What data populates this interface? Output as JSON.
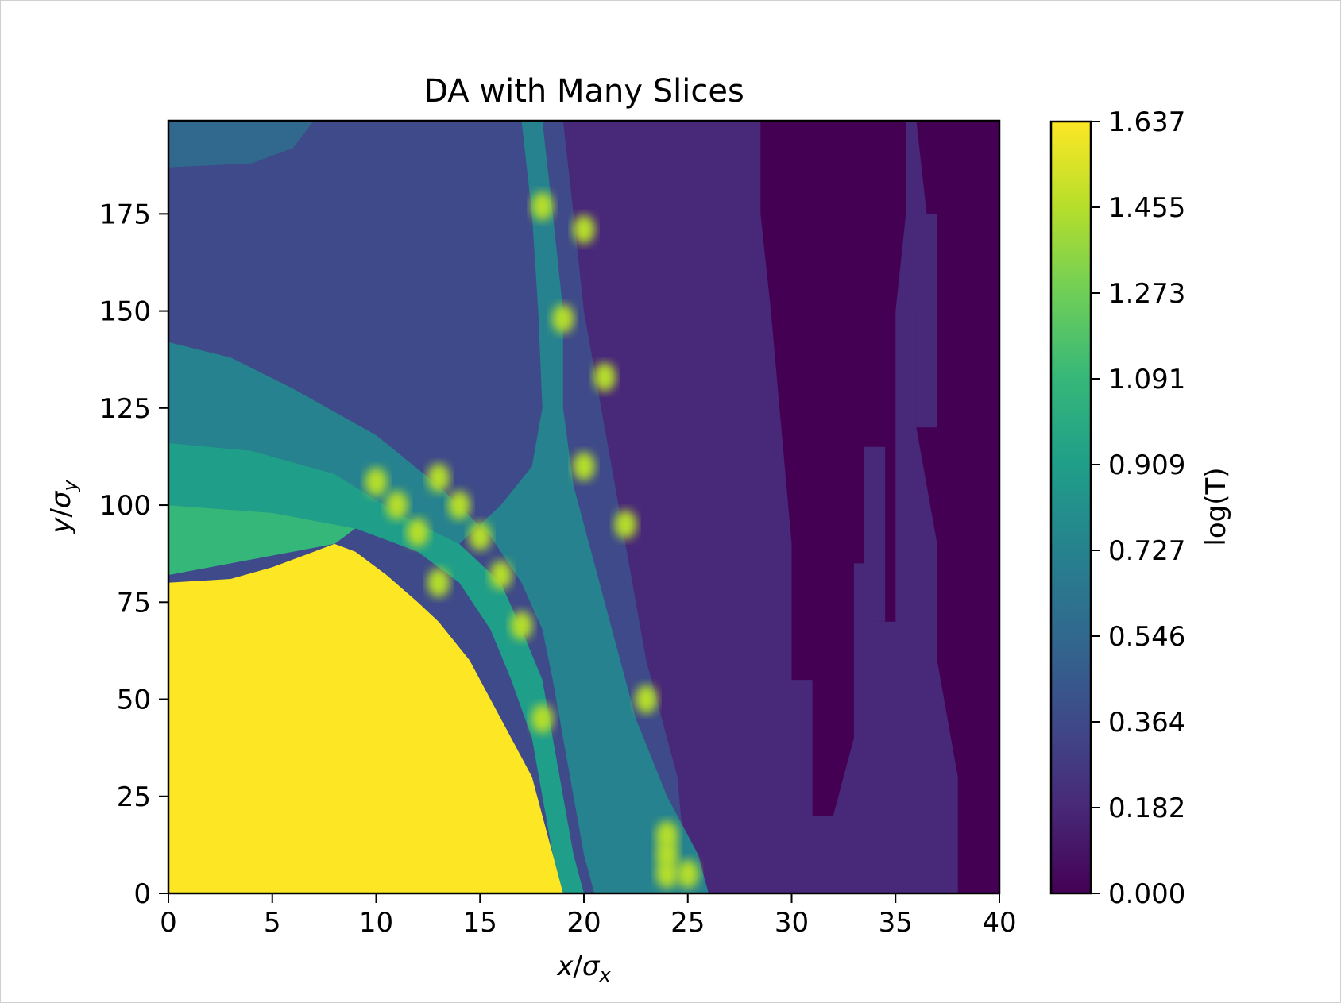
{
  "chart_data": {
    "type": "heatmap",
    "title": "DA with Many Slices",
    "xlabel_var": "x",
    "xlabel_sub": "x",
    "ylabel_var": "y",
    "ylabel_sub": "y",
    "xlim": [
      0,
      40
    ],
    "ylim": [
      0,
      199
    ],
    "xticks": [
      "0",
      "5",
      "10",
      "15",
      "20",
      "25",
      "30",
      "35",
      "40"
    ],
    "yticks": [
      "0",
      "25",
      "50",
      "75",
      "100",
      "125",
      "150",
      "175"
    ],
    "colorbar": {
      "label": "log(T)",
      "colormap": "viridis",
      "range": [
        0.0,
        1.637
      ],
      "ticks": [
        "0.000",
        "0.182",
        "0.364",
        "0.546",
        "0.727",
        "0.909",
        "1.091",
        "1.273",
        "1.455",
        "1.637"
      ]
    },
    "regions": {
      "stable_core": {
        "value": 1.637,
        "boundary_x_at_y": [
          [
            0,
            19
          ],
          [
            25,
            18
          ],
          [
            50,
            15
          ],
          [
            75,
            11
          ],
          [
            90,
            8
          ]
        ],
        "note_value_level": "max"
      },
      "teal_band_value": 0.8,
      "blue_value": 0.45,
      "indigo_value": 0.27,
      "dark_value": 0.0
    },
    "colors": {
      "v0": "#440154",
      "v1": "#482878",
      "v2": "#3e4a89",
      "v3": "#31688e",
      "v4": "#26828e",
      "v5": "#1f9e89",
      "v6": "#35b779",
      "v7": "#6ece58",
      "v8": "#b5de2b",
      "v9": "#fde725"
    }
  }
}
